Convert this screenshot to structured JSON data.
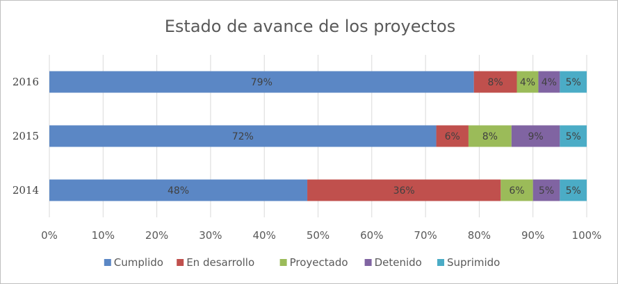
{
  "chart_data": {
    "type": "bar",
    "orientation": "horizontal",
    "stacked": "percent",
    "title": "Estado de avance de los proyectos",
    "categories": [
      "2016",
      "2015",
      "2014"
    ],
    "series": [
      {
        "name": "Cumplido",
        "color": "#5b87c5",
        "values": [
          79,
          72,
          48
        ],
        "labels": [
          "79%",
          "72%",
          "48%"
        ]
      },
      {
        "name": "En desarrollo",
        "color": "#c0504d",
        "values": [
          8,
          6,
          36
        ],
        "labels": [
          "8%",
          "6%",
          "36%"
        ]
      },
      {
        "name": "Proyectado",
        "color": "#9bbb59",
        "values": [
          4,
          8,
          6
        ],
        "labels": [
          "4%",
          "8%",
          "6%"
        ]
      },
      {
        "name": "Detenido",
        "color": "#8064a2",
        "values": [
          4,
          9,
          5
        ],
        "labels": [
          "4%",
          "9%",
          "5%"
        ]
      },
      {
        "name": "Suprimido",
        "color": "#4bacc6",
        "values": [
          5,
          5,
          5
        ],
        "labels": [
          "5%",
          "5%",
          "5%"
        ]
      }
    ],
    "xlim": [
      0,
      100
    ],
    "xticks": [
      "0%",
      "10%",
      "20%",
      "30%",
      "40%",
      "50%",
      "60%",
      "70%",
      "80%",
      "90%",
      "100%"
    ],
    "grid": true,
    "legend": "bottom"
  }
}
